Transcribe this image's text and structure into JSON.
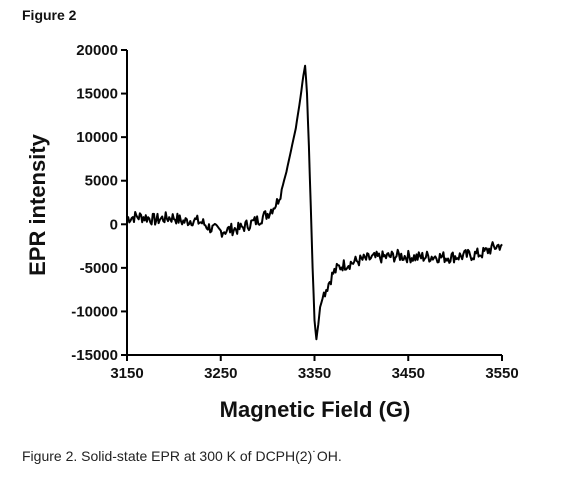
{
  "figure_label": "Figure 2",
  "caption": "Figure 2. Solid-state EPR at 300 K of DCPH(2)˙OH.",
  "chart_data": {
    "type": "line",
    "title": "",
    "xlabel": "Magnetic Field (G)",
    "ylabel": "EPR intensity",
    "xlim": [
      3150,
      3550
    ],
    "ylim": [
      -15000,
      20000
    ],
    "x_ticks": [
      3150,
      3250,
      3350,
      3450,
      3550
    ],
    "y_ticks": [
      20000,
      15000,
      10000,
      5000,
      0,
      -5000,
      -10000,
      -15000
    ],
    "grid": false,
    "legend": "none",
    "line_color": "#000000",
    "series": [
      {
        "x": [
          3150,
          3160,
          3170,
          3180,
          3190,
          3200,
          3210,
          3220,
          3230,
          3240,
          3250,
          3260,
          3270,
          3280,
          3290,
          3300,
          3310,
          3315,
          3320,
          3325,
          3330,
          3335,
          3338,
          3340,
          3342,
          3344,
          3346,
          3348,
          3350,
          3352,
          3354,
          3356,
          3360,
          3365,
          3370,
          3375,
          3380,
          3390,
          3400,
          3410,
          3420,
          3430,
          3440,
          3450,
          3460,
          3470,
          3480,
          3490,
          3500,
          3510,
          3520,
          3530,
          3540,
          3550
        ],
        "y": [
          700,
          900,
          800,
          500,
          700,
          800,
          300,
          500,
          200,
          -500,
          -800,
          -600,
          -500,
          0,
          500,
          1200,
          2500,
          4000,
          6000,
          8500,
          11000,
          14500,
          17000,
          18200,
          15000,
          9000,
          2000,
          -5000,
          -11000,
          -13200,
          -11500,
          -9500,
          -8000,
          -6800,
          -5600,
          -5000,
          -4700,
          -4400,
          -4100,
          -3900,
          -3800,
          -3700,
          -3600,
          -3700,
          -3800,
          -3700,
          -3700,
          -3800,
          -3700,
          -3600,
          -3500,
          -3300,
          -2700,
          -2300
        ]
      }
    ]
  }
}
